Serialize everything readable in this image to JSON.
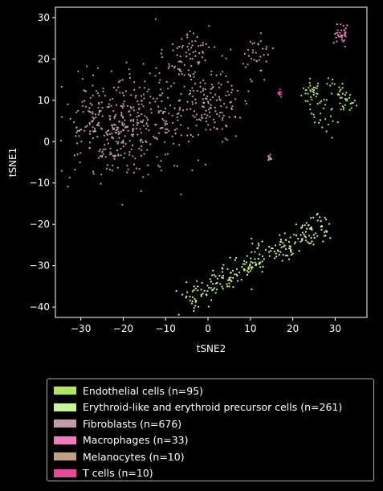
{
  "chart_data": {
    "type": "scatter",
    "title": "",
    "xlabel": "tSNE2",
    "ylabel": "tSNE1",
    "xlim": [
      -36,
      37.5
    ],
    "ylim": [
      -42.5,
      32.5
    ],
    "xticks": [
      -30,
      -20,
      -10,
      0,
      10,
      20,
      30
    ],
    "yticks": [
      -40,
      -30,
      -20,
      -10,
      0,
      10,
      20,
      30
    ],
    "xtick_labels": [
      "−30",
      "−20",
      "−10",
      "0",
      "10",
      "20",
      "30"
    ],
    "ytick_labels": [
      "−40",
      "−30",
      "−20",
      "−10",
      "0",
      "10",
      "20",
      "30"
    ],
    "legend_position": "below",
    "series": [
      {
        "name": "Endothelial cells (n=95)",
        "color": "#b0e65a",
        "n": 95,
        "clusters": [
          {
            "cx": 24.5,
            "cy": 12.0,
            "sx": 1.2,
            "sy": 1.6,
            "n": 30
          },
          {
            "cx": 28.0,
            "cy": 7.0,
            "sx": 1.8,
            "sy": 3.0,
            "n": 30
          },
          {
            "cx": 32.5,
            "cy": 9.5,
            "sx": 1.2,
            "sy": 1.4,
            "n": 25
          },
          {
            "cx": 29.5,
            "cy": 13.0,
            "sx": 1.5,
            "sy": 1.2,
            "n": 10
          }
        ]
      },
      {
        "name": "Erythroid-like and erythroid precursor cells (n=261)",
        "color": "#c8f59a",
        "n": 261,
        "line": {
          "x0": -5,
          "y0": -38,
          "x1": 28,
          "y1": -20,
          "spread": 1.6
        }
      },
      {
        "name": "Fibroblasts (n=676)",
        "color": "#c19aab",
        "n": 676,
        "clusters": [
          {
            "cx": -24,
            "cy": 3.0,
            "sx": 5.0,
            "sy": 5.5,
            "n": 240
          },
          {
            "cx": -14,
            "cy": 5.0,
            "sx": 5.5,
            "sy": 6.0,
            "n": 180
          },
          {
            "cx": 0,
            "cy": 9.0,
            "sx": 4.0,
            "sy": 4.5,
            "n": 150
          },
          {
            "cx": -5,
            "cy": 21.0,
            "sx": 3.5,
            "sy": 3.5,
            "n": 70
          },
          {
            "cx": 12,
            "cy": 20.0,
            "sx": 2.0,
            "sy": 2.5,
            "n": 36
          }
        ]
      },
      {
        "name": "Macrophages (n=33)",
        "color": "#f07cbf",
        "n": 33,
        "clusters": [
          {
            "cx": 31.5,
            "cy": 26.0,
            "sx": 0.9,
            "sy": 1.4,
            "n": 33
          }
        ]
      },
      {
        "name": "Melanocytes (n=10)",
        "color": "#c0a080",
        "n": 10,
        "clusters": [
          {
            "cx": 14.5,
            "cy": -3.8,
            "sx": 0.2,
            "sy": 0.4,
            "n": 10
          }
        ]
      },
      {
        "name": "T cells (n=10)",
        "color": "#e8489a",
        "n": 10,
        "clusters": [
          {
            "cx": 17.0,
            "cy": 11.5,
            "sx": 0.3,
            "sy": 0.6,
            "n": 10
          }
        ]
      }
    ]
  }
}
